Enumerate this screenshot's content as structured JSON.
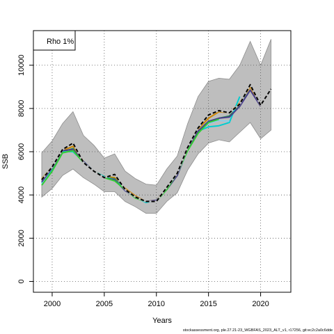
{
  "chart_data": {
    "type": "line",
    "title": "",
    "xlabel": "Years",
    "ylabel": "SSB",
    "xlim": [
      1998.2,
      2022.9
    ],
    "ylim": [
      -500,
      11600
    ],
    "x_ticks": [
      2000,
      2005,
      2010,
      2015,
      2020
    ],
    "y_ticks": [
      0,
      2000,
      4000,
      6000,
      8000,
      10000
    ],
    "grid": true,
    "legend": {
      "position": "top-left",
      "label": "Rho 1%"
    },
    "band": {
      "x": [
        1999,
        2000,
        2001,
        2002,
        2003,
        2004,
        2005,
        2006,
        2007,
        2008,
        2009,
        2010,
        2011,
        2012,
        2013,
        2014,
        2015,
        2016,
        2017,
        2018,
        2019,
        2020,
        2021
      ],
      "upper": [
        5950,
        6500,
        7300,
        7850,
        6750,
        6300,
        5700,
        5900,
        5100,
        4750,
        4500,
        4450,
        5200,
        5800,
        7300,
        8550,
        9250,
        9400,
        9350,
        10000,
        11100,
        10000,
        11200
      ],
      "lower": [
        3900,
        4300,
        4900,
        5200,
        4800,
        4500,
        4150,
        4150,
        3700,
        3450,
        3150,
        3150,
        3700,
        4100,
        5150,
        5900,
        6400,
        6550,
        6450,
        6900,
        7350,
        6600,
        7000
      ],
      "color": "#bebebe"
    },
    "series": [
      {
        "x": [
          1999,
          2000,
          2001,
          2002,
          2003,
          2004,
          2005,
          2006,
          2007,
          2008,
          2009,
          2010,
          2011,
          2012,
          2013,
          2014,
          2015,
          2016,
          2017,
          2018,
          2019,
          2020,
          2021
        ],
        "values": [
          4700,
          5300,
          6100,
          6400,
          5500,
          5100,
          4800,
          4950,
          4250,
          3900,
          3700,
          3700,
          4350,
          5000,
          6200,
          7100,
          7700,
          7900,
          7800,
          8200,
          9100,
          8150,
          8900
        ],
        "color": "#000000",
        "style": "dashed"
      },
      {
        "x": [
          1999,
          2000,
          2001,
          2002,
          2003,
          2004,
          2005,
          2006,
          2007,
          2008,
          2009,
          2010,
          2011,
          2012,
          2013,
          2014,
          2015,
          2016,
          2017,
          2018,
          2019,
          2020
        ],
        "values": [
          4750,
          5300,
          6050,
          6250,
          5550,
          5100,
          4850,
          4800,
          4300,
          3950,
          3700,
          3750,
          4300,
          5000,
          6150,
          7050,
          7550,
          7850,
          7800,
          8250,
          9000,
          8100
        ],
        "color": "#cd8500",
        "style": "solid"
      },
      {
        "x": [
          1999,
          2000,
          2001,
          2002,
          2003,
          2004,
          2005,
          2006,
          2007,
          2008,
          2009,
          2010,
          2011,
          2012,
          2013,
          2014,
          2015,
          2016,
          2017,
          2018,
          2019
        ],
        "values": [
          4700,
          5250,
          6000,
          6150,
          5500,
          5100,
          4800,
          4750,
          4250,
          3900,
          3700,
          3700,
          4300,
          4900,
          6100,
          6950,
          7400,
          7550,
          7650,
          8150,
          8850
        ],
        "color": "#2e8b57",
        "style": "solid"
      },
      {
        "x": [
          1999,
          2000,
          2001,
          2002,
          2003,
          2004,
          2005,
          2006,
          2007,
          2008,
          2009,
          2010,
          2011,
          2012,
          2013,
          2014,
          2015,
          2016,
          2017,
          2018
        ],
        "values": [
          4550,
          5150,
          6000,
          6000,
          5550,
          5100,
          4850,
          4700,
          4250,
          3900,
          3650,
          3750,
          4250,
          4950,
          6150,
          6950,
          7150,
          7200,
          7350,
          8550
        ],
        "color": "#00ced1",
        "style": "solid"
      },
      {
        "x": [
          1999,
          2000,
          2001,
          2002,
          2003,
          2004,
          2005,
          2006,
          2007,
          2008,
          2009,
          2010,
          2011,
          2012,
          2013,
          2014,
          2015,
          2016,
          2017
        ],
        "values": [
          4500,
          5100,
          5950,
          6050,
          5500,
          5100,
          4800,
          4700,
          4200,
          3900,
          3700,
          3700,
          4250,
          4950,
          6050,
          6900,
          7300,
          7450,
          7400
        ],
        "color": "#87ceeb",
        "style": "solid"
      },
      {
        "x": [
          1999,
          2000,
          2001,
          2002,
          2003,
          2004,
          2005,
          2006,
          2007,
          2008,
          2009,
          2010,
          2011,
          2012,
          2013,
          2014,
          2015,
          2016,
          2017,
          2018,
          2019,
          2020
        ],
        "values": [
          4600,
          5250,
          6050,
          6100,
          5550,
          5100,
          4800,
          4700,
          4200,
          3900,
          3700,
          3750,
          4250,
          4900,
          6150,
          6950,
          7400,
          7550,
          7600,
          8100,
          8850,
          8100
        ],
        "color": "#483d8b",
        "style": "solid"
      },
      {
        "x": [
          1999,
          2000,
          2001,
          2002,
          2003,
          2004,
          2005,
          2006,
          2007,
          2008,
          2009,
          2010,
          2011,
          2012,
          2013,
          2014,
          2015,
          2016
        ],
        "values": [
          4450,
          5100,
          5950,
          6050,
          5500,
          5100,
          4800,
          4650,
          4250,
          3850,
          3700,
          3700,
          4250,
          5000,
          6050,
          6850,
          7350,
          7500
        ],
        "color": "#32cd32",
        "style": "solid"
      }
    ]
  },
  "footnote": "stockassessment.org, ple.27.21-23_WGBFAS_2023_ALT_v1, r17256, git:ec2c2a0c6dde"
}
